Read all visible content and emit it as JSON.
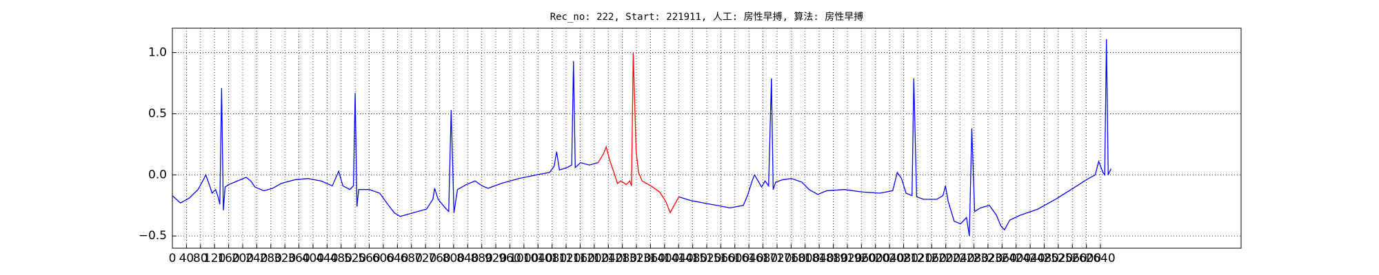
{
  "chart_data": {
    "type": "line",
    "title": "Rec_no: 222, Start: 221911, 人工: 房性早搏, 算法: 房性早搏",
    "series": [
      {
        "color": "#0000ff",
        "x": [
          0,
          23,
          48,
          73,
          90,
          95,
          105,
          113,
          123,
          130,
          135,
          140,
          145,
          150,
          160,
          185,
          210,
          223,
          235,
          260,
          285,
          310,
          348,
          385,
          423,
          455,
          473,
          485,
          505,
          515,
          520,
          525,
          530,
          560,
          590,
          610,
          631,
          648,
          673,
          698,
          723,
          741,
          746,
          756,
          773,
          786,
          793,
          801,
          811,
          836,
          861,
          881,
          898,
          936,
          986,
          1036,
          1073,
          1086,
          1093,
          1101,
          1123,
          1136,
          1141,
          1146,
          1161,
          1186,
          1211,
          1300,
          1441,
          1474,
          1511,
          1549,
          1586,
          1624,
          1636,
          1649,
          1656,
          1666,
          1676,
          1686,
          1696,
          1704,
          1709,
          1716,
          1736,
          1761,
          1791,
          1811,
          1836,
          1861,
          1912,
          1962,
          2012,
          2049,
          2062,
          2074,
          2087,
          2104,
          2109,
          2117,
          2137,
          2174,
          2192,
          2199,
          2207,
          2224,
          2242,
          2259,
          2267,
          2274,
          2282,
          2299,
          2324,
          2344,
          2357,
          2367,
          2382,
          2412,
          2462,
          2512,
          2562,
          2600,
          2625,
          2635,
          2647,
          2652,
          2657,
          2662,
          2670
        ],
        "values": [
          -0.17,
          -0.23,
          -0.19,
          -0.12,
          -0.03,
          0.0,
          -0.08,
          -0.15,
          -0.12,
          -0.18,
          -0.24,
          0.71,
          -0.29,
          -0.1,
          -0.08,
          -0.05,
          -0.02,
          -0.05,
          -0.1,
          -0.13,
          -0.11,
          -0.07,
          -0.04,
          -0.03,
          -0.05,
          -0.09,
          0.03,
          -0.09,
          -0.12,
          -0.09,
          0.67,
          -0.26,
          -0.12,
          -0.12,
          -0.15,
          -0.23,
          -0.31,
          -0.34,
          -0.32,
          -0.3,
          -0.28,
          -0.2,
          -0.11,
          -0.2,
          -0.26,
          -0.3,
          0.53,
          -0.31,
          -0.12,
          -0.08,
          -0.05,
          -0.09,
          -0.11,
          -0.07,
          -0.03,
          0.0,
          0.02,
          0.07,
          0.19,
          0.04,
          0.06,
          0.08,
          0.93,
          0.06,
          0.1,
          0.08,
          0.1,
          null,
          -0.18,
          -0.21,
          -0.23,
          -0.25,
          -0.27,
          -0.25,
          -0.17,
          -0.05,
          0.0,
          -0.05,
          -0.1,
          -0.05,
          -0.09,
          0.79,
          -0.12,
          -0.06,
          -0.04,
          -0.03,
          -0.06,
          -0.12,
          -0.16,
          -0.13,
          -0.12,
          -0.14,
          -0.15,
          -0.13,
          0.02,
          -0.03,
          -0.15,
          -0.17,
          0.79,
          -0.18,
          -0.2,
          -0.2,
          -0.17,
          -0.09,
          -0.22,
          -0.38,
          -0.4,
          -0.35,
          -0.5,
          0.38,
          -0.3,
          -0.27,
          -0.25,
          -0.33,
          -0.42,
          -0.45,
          -0.37,
          -0.33,
          -0.28,
          -0.2,
          -0.11,
          -0.04,
          0.0,
          0.11,
          0.02,
          0.0,
          1.11,
          0.0,
          0.05
        ]
      },
      {
        "color": "#ff0000",
        "x": [
          1211,
          1226,
          1234,
          1244,
          1256,
          1266,
          1276,
          1291,
          1301,
          1306,
          1311,
          1319,
          1326,
          1336,
          1361,
          1386,
          1404,
          1416,
          1429,
          1441
        ],
        "values": [
          0.1,
          0.17,
          0.23,
          0.12,
          0.02,
          -0.07,
          -0.05,
          -0.08,
          -0.05,
          -0.09,
          1.0,
          0.2,
          0.02,
          -0.05,
          -0.09,
          -0.14,
          -0.22,
          -0.31,
          -0.24,
          -0.18
        ]
      }
    ],
    "xlim": [
      0,
      3040
    ],
    "ylim": [
      -0.6,
      1.2
    ],
    "xticks": [
      0,
      40,
      80,
      120,
      160,
      200,
      240,
      280,
      320,
      360,
      400,
      440,
      480,
      520,
      560,
      600,
      640,
      680,
      720,
      760,
      800,
      840,
      880,
      920,
      960,
      1000,
      1040,
      1080,
      1120,
      1160,
      1200,
      1240,
      1280,
      1320,
      1360,
      1400,
      1440,
      1480,
      1520,
      1560,
      1600,
      1640,
      1680,
      1720,
      1760,
      1800,
      1840,
      1880,
      1920,
      1960,
      2000,
      2040,
      2080,
      2120,
      2160,
      2200,
      2240,
      2280,
      2320,
      2360,
      2400,
      2440,
      2480,
      2520,
      2560,
      2600,
      2640
    ],
    "yticks": [
      {
        "value": -0.5,
        "label": "−0.5"
      },
      {
        "value": 0,
        "label": "0.0"
      },
      {
        "value": 0.5,
        "label": "0.5"
      },
      {
        "value": 1,
        "label": "1.0"
      }
    ],
    "grid": true
  }
}
